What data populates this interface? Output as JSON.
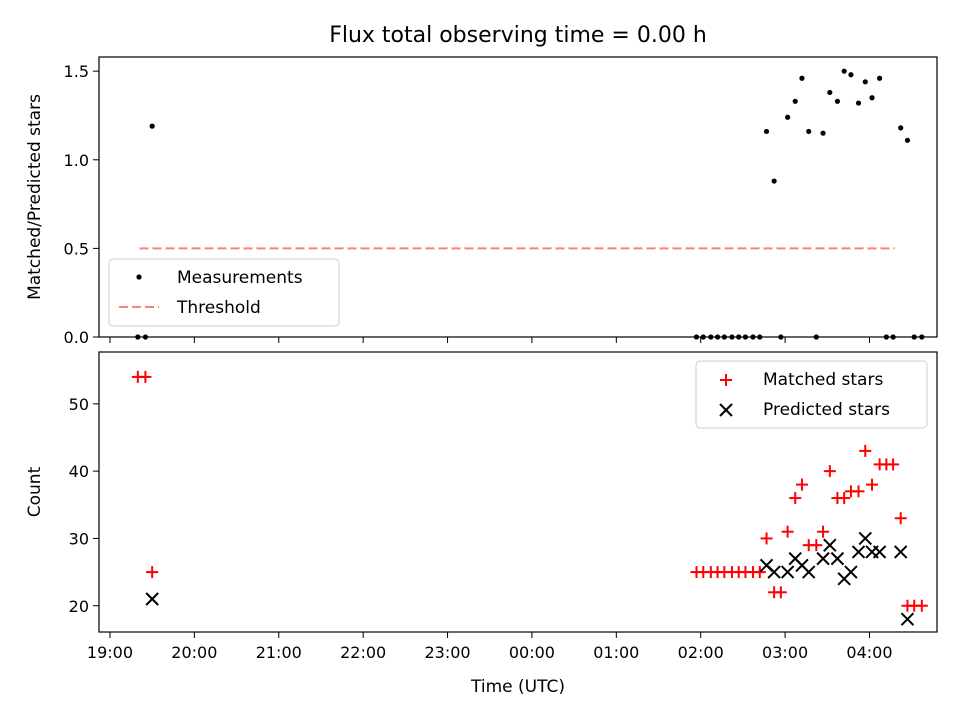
{
  "title": "Flux total observing time = 0.00 h",
  "colors": {
    "measurement": "#000000",
    "threshold": "#ff7f7f",
    "matched": "#ff0000",
    "predicted": "#000000"
  },
  "chart_data": [
    {
      "type": "scatter",
      "ylabel": "Matched/Predicted stars",
      "ylim": [
        0,
        1.58
      ],
      "yticks": [
        0,
        0.5,
        1.0,
        1.5
      ],
      "ytick_labels": [
        "0.0",
        "0.5",
        "1.0",
        "1.5"
      ],
      "xlim": [
        -0.13,
        9.8
      ],
      "xticks": [
        0,
        1,
        2,
        3,
        4,
        5,
        6,
        7,
        8,
        9
      ],
      "legend": {
        "position": "lower-left",
        "items": [
          "Measurements",
          "Threshold"
        ]
      },
      "threshold": {
        "name": "Threshold",
        "y": 0.5,
        "x_range": [
          0.35,
          9.3
        ]
      },
      "series": [
        {
          "name": "Measurements",
          "points": [
            [
              0.33,
              0.0
            ],
            [
              0.42,
              0.0
            ],
            [
              0.5,
              1.19
            ],
            [
              6.95,
              0.0
            ],
            [
              7.03,
              0.0
            ],
            [
              7.12,
              0.0
            ],
            [
              7.2,
              0.0
            ],
            [
              7.28,
              0.0
            ],
            [
              7.37,
              0.0
            ],
            [
              7.45,
              0.0
            ],
            [
              7.53,
              0.0
            ],
            [
              7.62,
              0.0
            ],
            [
              7.7,
              0.0
            ],
            [
              7.78,
              1.16
            ],
            [
              7.87,
              0.88
            ],
            [
              7.95,
              0.0
            ],
            [
              8.03,
              1.24
            ],
            [
              8.12,
              1.33
            ],
            [
              8.2,
              1.46
            ],
            [
              8.28,
              1.16
            ],
            [
              8.37,
              0.0
            ],
            [
              8.45,
              1.15
            ],
            [
              8.53,
              1.38
            ],
            [
              8.62,
              1.33
            ],
            [
              8.7,
              1.5
            ],
            [
              8.78,
              1.48
            ],
            [
              8.87,
              1.32
            ],
            [
              8.95,
              1.44
            ],
            [
              9.03,
              1.35
            ],
            [
              9.12,
              1.46
            ],
            [
              9.2,
              0.0
            ],
            [
              9.28,
              0.0
            ],
            [
              9.37,
              1.18
            ],
            [
              9.45,
              1.11
            ],
            [
              9.53,
              0.0
            ],
            [
              9.62,
              0.0
            ]
          ]
        }
      ]
    },
    {
      "type": "scatter",
      "xlabel": "Time (UTC)",
      "ylabel": "Count",
      "ylim": [
        16.1,
        57.7
      ],
      "yticks": [
        20,
        30,
        40,
        50
      ],
      "ytick_labels": [
        "20",
        "30",
        "40",
        "50"
      ],
      "xlim": [
        -0.13,
        9.8
      ],
      "xticks": [
        0,
        1,
        2,
        3,
        4,
        5,
        6,
        7,
        8,
        9
      ],
      "xtick_labels": [
        "19:00",
        "20:00",
        "21:00",
        "22:00",
        "23:00",
        "00:00",
        "01:00",
        "02:00",
        "03:00",
        "04:00"
      ],
      "legend": {
        "position": "upper-right",
        "items": [
          "Matched stars",
          "Predicted stars"
        ]
      },
      "series": [
        {
          "name": "Matched stars",
          "marker": "plus",
          "points": [
            [
              0.33,
              54
            ],
            [
              0.42,
              54
            ],
            [
              0.5,
              25
            ],
            [
              6.95,
              25
            ],
            [
              7.03,
              25
            ],
            [
              7.12,
              25
            ],
            [
              7.2,
              25
            ],
            [
              7.28,
              25
            ],
            [
              7.37,
              25
            ],
            [
              7.45,
              25
            ],
            [
              7.53,
              25
            ],
            [
              7.62,
              25
            ],
            [
              7.7,
              25
            ],
            [
              7.78,
              30
            ],
            [
              7.87,
              22
            ],
            [
              7.95,
              22
            ],
            [
              8.03,
              31
            ],
            [
              8.12,
              36
            ],
            [
              8.2,
              38
            ],
            [
              8.28,
              29
            ],
            [
              8.37,
              29
            ],
            [
              8.45,
              31
            ],
            [
              8.53,
              40
            ],
            [
              8.62,
              36
            ],
            [
              8.7,
              36
            ],
            [
              8.78,
              37
            ],
            [
              8.87,
              37
            ],
            [
              8.95,
              43
            ],
            [
              9.03,
              38
            ],
            [
              9.12,
              41
            ],
            [
              9.2,
              41
            ],
            [
              9.28,
              41
            ],
            [
              9.37,
              33
            ],
            [
              9.45,
              20
            ],
            [
              9.53,
              20
            ],
            [
              9.62,
              20
            ]
          ]
        },
        {
          "name": "Predicted stars",
          "marker": "x",
          "points": [
            [
              0.5,
              21
            ],
            [
              7.78,
              26
            ],
            [
              7.87,
              25
            ],
            [
              8.03,
              25
            ],
            [
              8.12,
              27
            ],
            [
              8.2,
              26
            ],
            [
              8.28,
              25
            ],
            [
              8.45,
              27
            ],
            [
              8.53,
              29
            ],
            [
              8.62,
              27
            ],
            [
              8.7,
              24
            ],
            [
              8.78,
              25
            ],
            [
              8.87,
              28
            ],
            [
              8.95,
              30
            ],
            [
              9.03,
              28
            ],
            [
              9.12,
              28
            ],
            [
              9.37,
              28
            ],
            [
              9.45,
              18
            ]
          ]
        }
      ]
    }
  ]
}
